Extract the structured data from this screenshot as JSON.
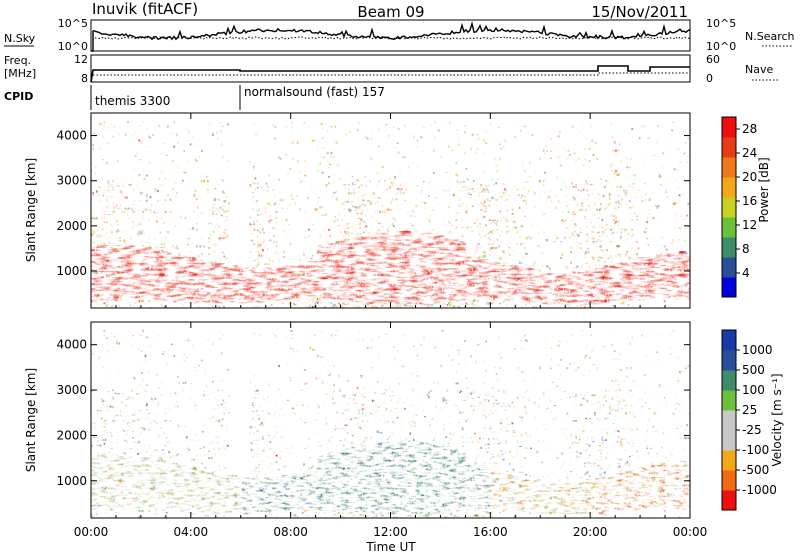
{
  "header": {
    "station": "Inuvik (fitACF)",
    "beam": "Beam 09",
    "date": "15/Nov/2011"
  },
  "nsky_panel": {
    "left_label": "N.Sky",
    "left_ticks": [
      "10^5",
      "10^0"
    ],
    "right_ticks": [
      "10^5",
      "10^0"
    ],
    "right_label": "N.Search"
  },
  "freq_panel": {
    "left_label_1": "Freq.",
    "left_label_2": "[MHz]",
    "left_ticks": [
      "12",
      "8"
    ],
    "right_ticks": [
      "60",
      "0"
    ],
    "right_label": "Nave"
  },
  "cpid": {
    "label": "CPID",
    "segments": [
      {
        "name": "themis 3300",
        "start_hour": 0
      },
      {
        "name": "normalsound (fast) 157",
        "start_hour": 6
      }
    ]
  },
  "colors": {
    "power_scale": [
      "#0000dd",
      "#2a4f9a",
      "#3d8c6a",
      "#6bbf3a",
      "#c8d020",
      "#f3a81a",
      "#f07818",
      "#e83c14",
      "#ee1010"
    ],
    "velocity_scale": [
      "#ee1010",
      "#f06a14",
      "#f3a81a",
      "#c8c8c8",
      "#c8c8c8",
      "#6bbf3a",
      "#3d8c6a",
      "#2a4f9a",
      "#1a3aa8"
    ]
  },
  "chart_data": [
    {
      "type": "heatmap",
      "panel": "power",
      "xlabel": "",
      "ylabel": "Slant Range [km]",
      "x_ticks": [
        "00:00",
        "04:00",
        "08:00",
        "12:00",
        "16:00",
        "20:00",
        "00:00"
      ],
      "y_ticks": [
        "1000",
        "2000",
        "3000",
        "4000"
      ],
      "xlim": [
        0,
        24
      ],
      "ylim": [
        180,
        4500
      ],
      "colorbar_label": "Power [dB]",
      "colorbar_ticks": [
        "4",
        "8",
        "12",
        "16",
        "20",
        "24",
        "28"
      ],
      "clim": [
        0,
        30
      ]
    },
    {
      "type": "heatmap",
      "panel": "velocity",
      "xlabel": "Time UT",
      "ylabel": "Slant Range [km]",
      "x_ticks": [
        "00:00",
        "04:00",
        "08:00",
        "12:00",
        "16:00",
        "20:00",
        "00:00"
      ],
      "y_ticks": [
        "1000",
        "2000",
        "3000",
        "4000"
      ],
      "xlim": [
        0,
        24
      ],
      "ylim": [
        180,
        4500
      ],
      "colorbar_label": "Velocity [m s⁻¹]",
      "colorbar_ticks": [
        "1000",
        "500",
        "100",
        "25",
        "-25",
        "-100",
        "-500",
        "-1000"
      ]
    }
  ]
}
